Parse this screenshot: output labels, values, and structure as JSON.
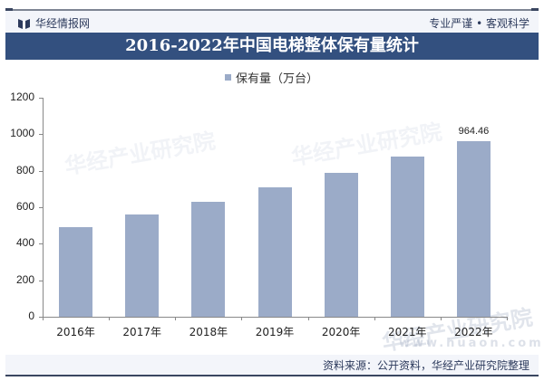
{
  "header": {
    "logo_text": "华经情报网",
    "slogan": "专业严谨 • 客观科学"
  },
  "title": "2016-2022年中国电梯整体保有量统计",
  "legend": {
    "label": "保有量（万台）",
    "color": "#9babc8"
  },
  "footer": {
    "source": "资料来源：公开资料，华经产业研究院整理"
  },
  "watermark": {
    "text": "华经产业研究院",
    "url": "www.huaon.com"
  },
  "chart_data": {
    "type": "bar",
    "title": "2016-2022年中国电梯整体保有量统计",
    "xlabel": "",
    "ylabel": "",
    "categories": [
      "2016年",
      "2017年",
      "2018年",
      "2019年",
      "2020年",
      "2021年",
      "2022年"
    ],
    "series": [
      {
        "name": "保有量（万台）",
        "values": [
          493,
          562,
          628,
          709,
          786,
          879,
          964.46
        ],
        "color": "#9babc8"
      }
    ],
    "data_labels": [
      {
        "category": "2022年",
        "text": "964.46"
      }
    ],
    "yticks": [
      0,
      200,
      400,
      600,
      800,
      1000,
      1200
    ],
    "ylim": [
      0,
      1200
    ],
    "grid": false,
    "legend_position": "top"
  }
}
